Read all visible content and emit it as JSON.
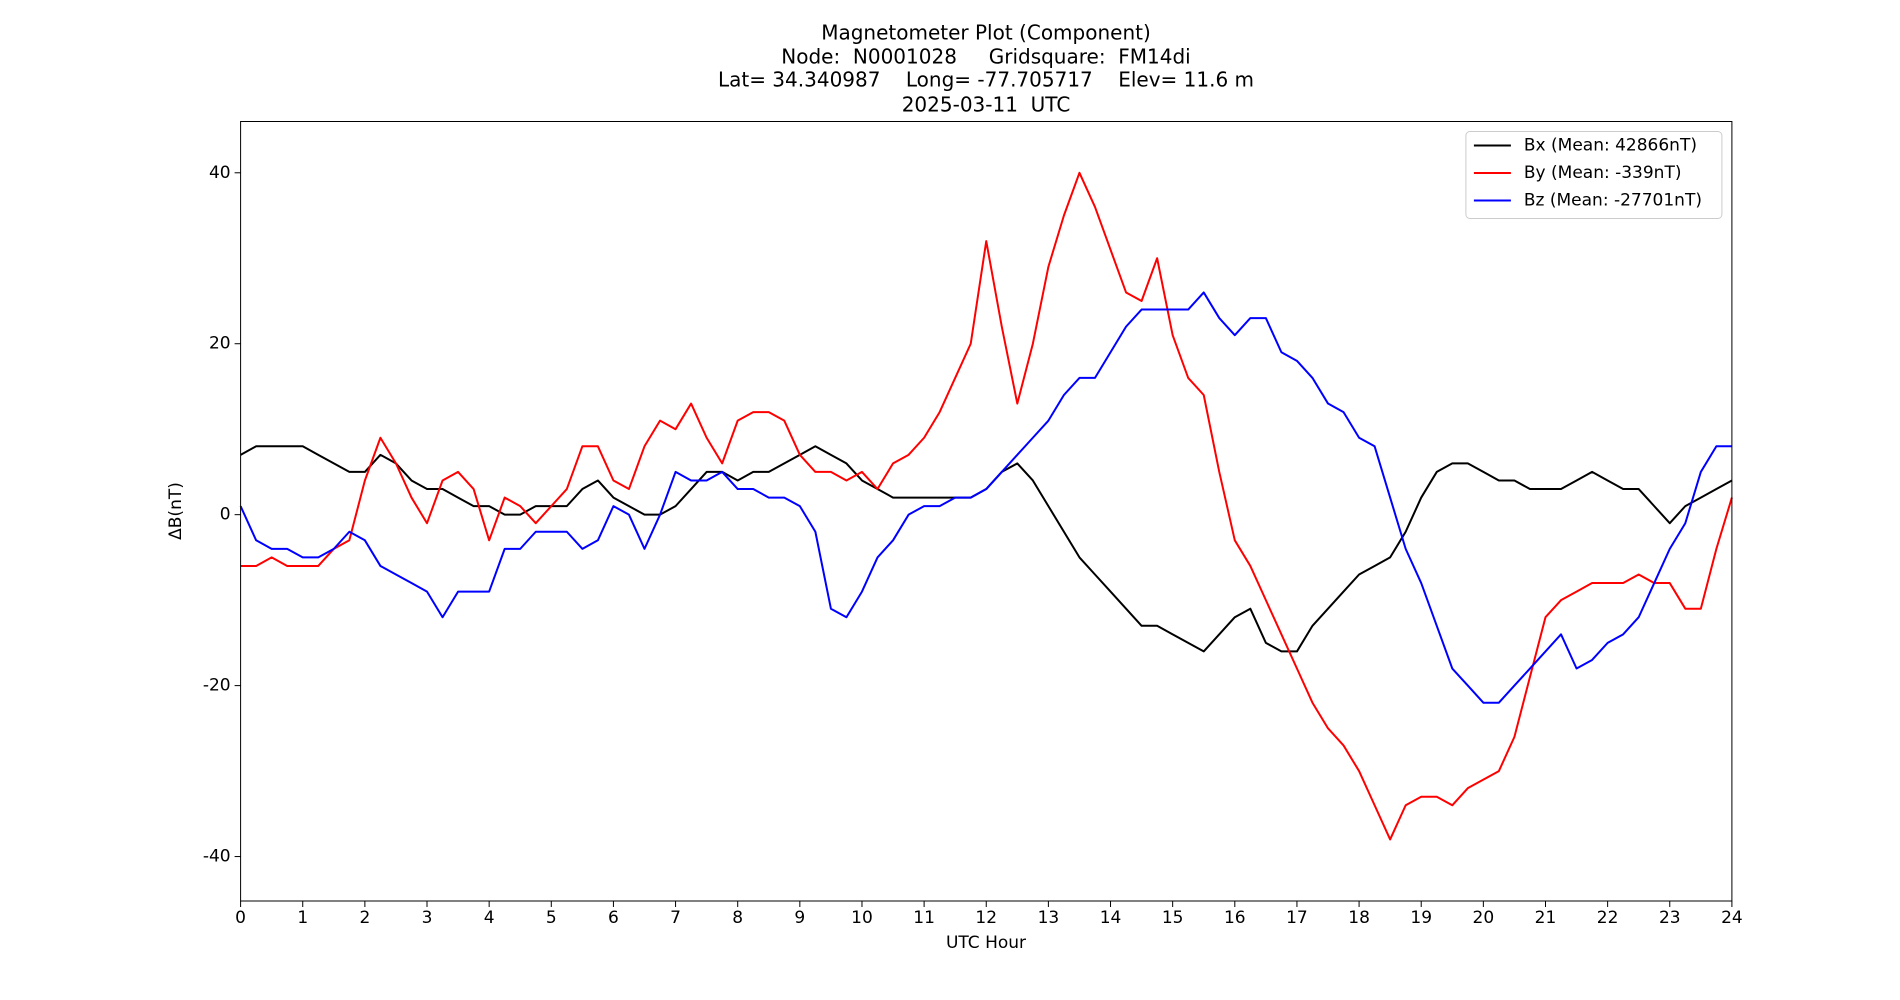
{
  "chart_data": {
    "type": "line",
    "title": [
      "Magnetometer Plot (Component)",
      "Node:  N0001028     Gridsquare:  FM14di",
      "Lat= 34.340987    Long= -77.705717    Elev= 11.6 m",
      "2025-03-11  UTC"
    ],
    "xlabel": "UTC Hour",
    "ylabel": "ΔB(nT)",
    "xlim": [
      0,
      24
    ],
    "ylim": [
      -45.2,
      46.0
    ],
    "xticks": [
      0,
      1,
      2,
      3,
      4,
      5,
      6,
      7,
      8,
      9,
      10,
      11,
      12,
      13,
      14,
      15,
      16,
      17,
      18,
      19,
      20,
      21,
      22,
      23,
      24
    ],
    "yticks": [
      -40,
      -20,
      0,
      20,
      40
    ],
    "grid": false,
    "legend": "upper right",
    "x": [
      0,
      0.25,
      0.5,
      0.75,
      1,
      1.25,
      1.5,
      1.75,
      2,
      2.25,
      2.5,
      2.75,
      3,
      3.25,
      3.5,
      3.75,
      4,
      4.25,
      4.5,
      4.75,
      5,
      5.25,
      5.5,
      5.75,
      6,
      6.25,
      6.5,
      6.75,
      7,
      7.25,
      7.5,
      7.75,
      8,
      8.25,
      8.5,
      8.75,
      9,
      9.25,
      9.5,
      9.75,
      10,
      10.25,
      10.5,
      10.75,
      11,
      11.25,
      11.5,
      11.75,
      12,
      12.25,
      12.5,
      12.75,
      13,
      13.25,
      13.5,
      13.75,
      14,
      14.25,
      14.5,
      14.75,
      15,
      15.25,
      15.5,
      15.75,
      16,
      16.25,
      16.5,
      16.75,
      17,
      17.25,
      17.5,
      17.75,
      18,
      18.25,
      18.5,
      18.75,
      19,
      19.25,
      19.5,
      19.75,
      20,
      20.25,
      20.5,
      20.75,
      21,
      21.25,
      21.5,
      21.75,
      22,
      22.25,
      22.5,
      22.75,
      23,
      23.25,
      23.5,
      23.75,
      24
    ],
    "series": [
      {
        "name": "Bx (Mean: 42866nT)",
        "color": "#000000",
        "values": [
          7,
          8,
          8,
          8,
          8,
          7,
          6,
          5,
          5,
          7,
          6,
          4,
          3,
          3,
          2,
          1,
          1,
          0,
          0,
          1,
          1,
          1,
          3,
          4,
          2,
          1,
          0,
          0,
          1,
          3,
          5,
          5,
          4,
          5,
          5,
          6,
          7,
          8,
          7,
          6,
          4,
          3,
          2,
          2,
          2,
          2,
          2,
          2,
          3,
          5,
          6,
          4,
          1,
          -2,
          -5,
          -7,
          -9,
          -11,
          -13,
          -13,
          -14,
          -15,
          -16,
          -14,
          -12,
          -11,
          -15,
          -16,
          -16,
          -13,
          -11,
          -9,
          -7,
          -6,
          -5,
          -2,
          2,
          5,
          6,
          6,
          5,
          4,
          4,
          3,
          3,
          3,
          4,
          5,
          4,
          3,
          3,
          1,
          -1,
          1,
          2,
          3,
          4
        ]
      },
      {
        "name": "By (Mean: -339nT)",
        "color": "#ff0000",
        "values": [
          -6,
          -6,
          -5,
          -6,
          -6,
          -6,
          -4,
          -3,
          4,
          9,
          6,
          2,
          -1,
          4,
          5,
          3,
          -3,
          2,
          1,
          -1,
          1,
          3,
          8,
          8,
          4,
          3,
          8,
          11,
          10,
          13,
          9,
          6,
          11,
          12,
          12,
          11,
          7,
          5,
          5,
          4,
          5,
          3,
          6,
          7,
          9,
          12,
          16,
          20,
          32,
          22,
          13,
          20,
          29,
          35,
          40,
          36,
          31,
          26,
          25,
          30,
          21,
          16,
          14,
          5,
          -3,
          -6,
          -10,
          -14,
          -18,
          -22,
          -25,
          -27,
          -30,
          -34,
          -38,
          -34,
          -33,
          -33,
          -34,
          -32,
          -31,
          -30,
          -26,
          -19,
          -12,
          -10,
          -9,
          -8,
          -8,
          -8,
          -7,
          -8,
          -8,
          -11,
          -11,
          -4,
          2
        ]
      },
      {
        "name": "Bz (Mean: -27701nT)",
        "color": "#0000ff",
        "values": [
          1,
          -3,
          -4,
          -4,
          -5,
          -5,
          -4,
          -2,
          -3,
          -6,
          -7,
          -8,
          -9,
          -12,
          -9,
          -9,
          -9,
          -4,
          -4,
          -2,
          -2,
          -2,
          -4,
          -3,
          1,
          0,
          -4,
          0,
          5,
          4,
          4,
          5,
          3,
          3,
          2,
          2,
          1,
          -2,
          -11,
          -12,
          -9,
          -5,
          -3,
          0,
          1,
          1,
          2,
          2,
          3,
          5,
          7,
          9,
          11,
          14,
          16,
          16,
          19,
          22,
          24,
          24,
          24,
          24,
          26,
          23,
          21,
          23,
          23,
          19,
          18,
          16,
          13,
          12,
          9,
          8,
          2,
          -4,
          -8,
          -13,
          -18,
          -20,
          -22,
          -22,
          -20,
          -18,
          -16,
          -14,
          -18,
          -17,
          -15,
          -14,
          -12,
          -8,
          -4,
          -1,
          5,
          8,
          8
        ]
      }
    ]
  }
}
